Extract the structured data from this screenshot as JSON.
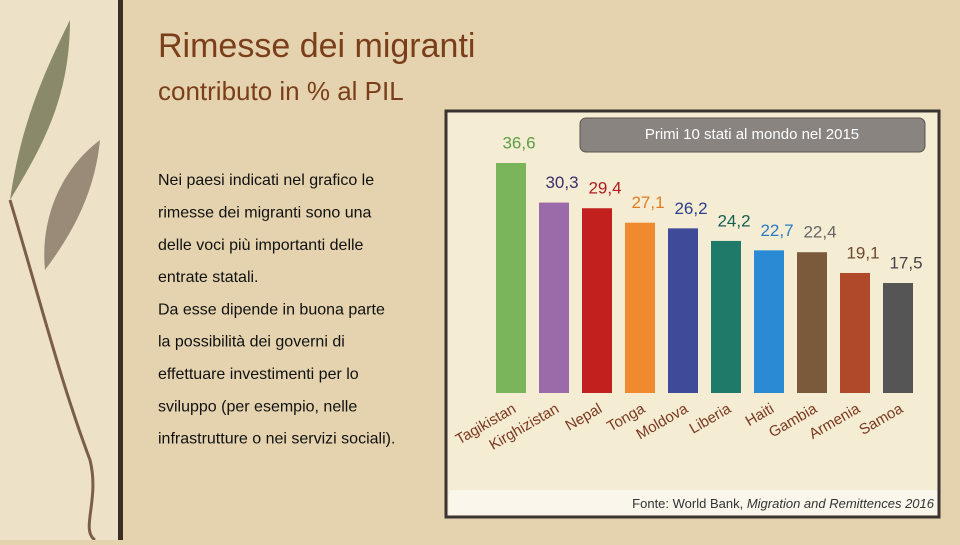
{
  "header": {
    "title": "Rimesse dei migranti",
    "subtitle": "contributo in % al PIL"
  },
  "body": {
    "lines": [
      "Nei paesi indicati nel grafico le",
      "rimesse dei migranti sono una",
      "delle voci più importanti delle",
      "entrate statali.",
      "Da esse dipende in buona parte",
      "la possibilità dei governi di",
      "effettuare investimenti per lo",
      "sviluppo (per esempio, nelle",
      "infrastrutture o nei servizi sociali)."
    ]
  },
  "chart_data": {
    "type": "bar",
    "title": "Primi 10 stati al mondo nel 2015",
    "categories": [
      "Tagikistan",
      "Kirghizistan",
      "Nepal",
      "Tonga",
      "Moldova",
      "Liberia",
      "Haiti",
      "Gambia",
      "Armenia",
      "Samoa"
    ],
    "values": [
      36.6,
      30.3,
      29.4,
      27.1,
      26.2,
      24.2,
      22.7,
      22.4,
      19.1,
      17.5
    ],
    "value_labels": [
      "36,6",
      "30,3",
      "29,4",
      "27,1",
      "26,2",
      "24,2",
      "22,7",
      "22,4",
      "19,1",
      "17,5"
    ],
    "colors": [
      "#7ab55c",
      "#9b6aa8",
      "#c21f1f",
      "#f08a30",
      "#3f4a98",
      "#1f7a6a",
      "#2a8ad4",
      "#7a5a3a",
      "#b0482a",
      "#555555"
    ],
    "label_colors": [
      "#5c9e46",
      "#3a2f6e",
      "#b01c1c",
      "#e07d24",
      "#2a3f8e",
      "#155e52",
      "#2a7ac4",
      "#666666",
      "#6a4a30",
      "#444444"
    ],
    "source": {
      "text": "Fonte: World Bank, ",
      "italic": "Migration and Remittences 2016"
    }
  }
}
